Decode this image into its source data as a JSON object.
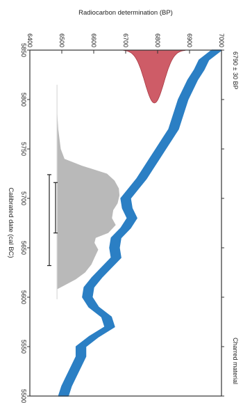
{
  "chart_data": {
    "type": "area",
    "title": "",
    "xlabel": "Calibrated date (cal BC)",
    "ylabel": "Radiocarbon determination (BP)",
    "x_range": [
      5850,
      5500
    ],
    "x_ticks": [
      "5850",
      "5800",
      "5750",
      "5700",
      "5650",
      "5600",
      "5550",
      "5500"
    ],
    "y_range": [
      6400,
      7000
    ],
    "y_ticks": [
      "6400",
      "6500",
      "6600",
      "6700",
      "6800",
      "6900",
      "7000"
    ],
    "sample_label": "6790 ± 30 BP",
    "material_label": "Charred material",
    "calibration_curve": {
      "color": "#2b7fc4",
      "band_half_width": 15,
      "x": [
        5850,
        5840,
        5830,
        5820,
        5810,
        5800,
        5790,
        5780,
        5770,
        5760,
        5750,
        5740,
        5730,
        5720,
        5710,
        5700,
        5690,
        5680,
        5670,
        5660,
        5650,
        5640,
        5630,
        5620,
        5610,
        5600,
        5590,
        5580,
        5570,
        5560,
        5550,
        5540,
        5530,
        5520,
        5510,
        5500
      ],
      "y": [
        6985,
        6945,
        6930,
        6910,
        6895,
        6880,
        6870,
        6860,
        6850,
        6830,
        6810,
        6790,
        6770,
        6750,
        6725,
        6700,
        6705,
        6720,
        6700,
        6670,
        6665,
        6670,
        6640,
        6610,
        6585,
        6580,
        6600,
        6640,
        6650,
        6600,
        6560,
        6560,
        6545,
        6530,
        6515,
        6505
      ]
    },
    "radiocarbon_distribution": {
      "color": "#c94a56",
      "mean": 6790,
      "sigma": 30
    },
    "calibrated_distribution": {
      "color": "#b9b9b9",
      "x": [
        5790,
        5780,
        5770,
        5760,
        5750,
        5740,
        5733,
        5725,
        5718,
        5710,
        5703,
        5695,
        5688,
        5680,
        5673,
        5665,
        5660,
        5655,
        5648,
        5640,
        5633,
        5625,
        5618,
        5612,
        5608
      ],
      "density": [
        0.0,
        0.01,
        0.02,
        0.04,
        0.06,
        0.12,
        0.4,
        0.8,
        0.92,
        0.99,
        1.0,
        0.97,
        0.9,
        0.88,
        0.94,
        0.82,
        0.62,
        0.6,
        0.66,
        0.6,
        0.55,
        0.45,
        0.3,
        0.12,
        0.0
      ]
    },
    "ranges": [
      {
        "from": 5724,
        "to": 5632
      },
      {
        "from": 5716,
        "to": 5665
      }
    ],
    "grid": false,
    "legend": "none"
  }
}
